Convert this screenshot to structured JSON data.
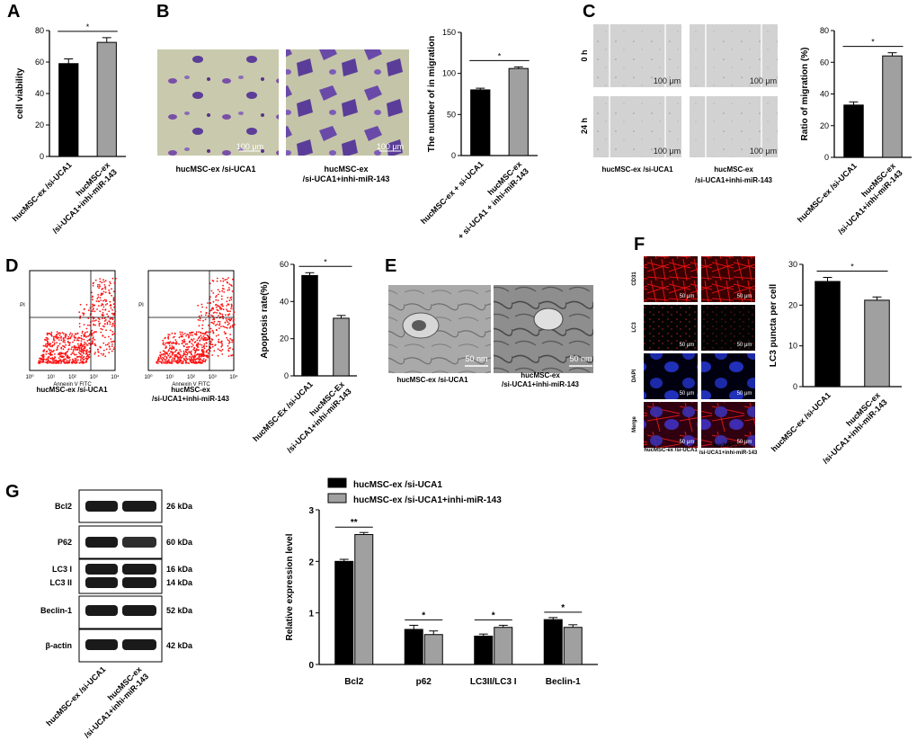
{
  "panels": {
    "A": {
      "letter": "A",
      "chart_data": {
        "type": "bar",
        "categories": [
          "hucMSC-ex /si-UCA1",
          "hucMSC-ex\n/si-UCA1+inhi-miR-143"
        ],
        "values": [
          59,
          72.5
        ],
        "errors": [
          3,
          3
        ],
        "colors": [
          "#000000",
          "#a0a0a0"
        ],
        "ylabel": "cell viability",
        "ylim": [
          0,
          80
        ],
        "yticks": [
          0,
          20,
          40,
          60,
          80
        ],
        "significance": "*"
      }
    },
    "B": {
      "letter": "B",
      "image_labels": [
        "hucMSC-ex /si-UCA1",
        "hucMSC-ex\n/si-UCA1+inhi-miR-143"
      ],
      "scale_bar": "100 μm",
      "chart_data": {
        "type": "bar",
        "categories": [
          "hucMSC-ex + si-UCA1",
          "hucMSC-ex\n+ si-UCA1 + inhi-miR-143"
        ],
        "values": [
          80,
          106
        ],
        "errors": [
          2,
          2
        ],
        "colors": [
          "#000000",
          "#a0a0a0"
        ],
        "ylabel": "The number of in migration",
        "ylim": [
          0,
          150
        ],
        "yticks": [
          0,
          50,
          100,
          150
        ],
        "significance": "*"
      }
    },
    "C": {
      "letter": "C",
      "row_labels": [
        "0 h",
        "24 h"
      ],
      "image_labels": [
        "hucMSC-ex /si-UCA1",
        "hucMSC-ex\n/si-UCA1+inhi-miR-143"
      ],
      "scale_bar": "100 μm",
      "chart_data": {
        "type": "bar",
        "categories": [
          "hucMSC-ex /si-UCA1",
          "hucMSC-ex\n/si-UCA1+inhi-miR-143"
        ],
        "values": [
          33,
          64
        ],
        "errors": [
          2,
          2
        ],
        "colors": [
          "#000000",
          "#a0a0a0"
        ],
        "ylabel": "Ratio of migration (%)",
        "ylim": [
          0,
          80
        ],
        "yticks": [
          0,
          20,
          40,
          60,
          80
        ],
        "significance": "*"
      }
    },
    "D": {
      "letter": "D",
      "flow_labels": [
        "hucMSC-ex /si-UCA1",
        "hucMSC-ex\n/si-UCA1+inhi-miR-143"
      ],
      "flow_xlabel": "Annexin V FITC",
      "flow_ylabel": "PI",
      "chart_data": {
        "type": "bar",
        "categories": [
          "hucMSC-Ex /si-UCA1",
          "hucMSC-Ex\n/si-UCA1+inhi-miR-143"
        ],
        "values": [
          54,
          31
        ],
        "errors": [
          1.5,
          1.5
        ],
        "colors": [
          "#000000",
          "#a0a0a0"
        ],
        "ylabel": "Apoptosis rate(%)",
        "ylim": [
          0,
          60
        ],
        "yticks": [
          0,
          20,
          40,
          60
        ],
        "significance": "*"
      }
    },
    "E": {
      "letter": "E",
      "image_labels": [
        "hucMSC-ex /si-UCA1",
        "hucMSC-ex\n/si-UCA1+inhi-miR-143"
      ],
      "scale_bar": "50 nm"
    },
    "F": {
      "letter": "F",
      "row_labels": [
        "CD31",
        "LC3",
        "DAPI",
        "Merge"
      ],
      "image_labels": [
        "hucMSC-ex /si-UCA1",
        "hucMSC-ex\n/si-UCA1+inhi-miR-143"
      ],
      "scale_bar": "50 μm",
      "chart_data": {
        "type": "bar",
        "categories": [
          "hucMSC-ex /si-UCA1",
          "hucMSC-ex\n/si-UCA1+inhi-miR-143"
        ],
        "values": [
          25.8,
          21.2
        ],
        "errors": [
          1,
          0.8
        ],
        "colors": [
          "#000000",
          "#a0a0a0"
        ],
        "ylabel": "LC3 puncta per cell",
        "ylim": [
          0,
          30
        ],
        "yticks": [
          0,
          10,
          20,
          30
        ],
        "significance": "*"
      }
    },
    "G": {
      "letter": "G",
      "blot_rows": [
        {
          "name": "Bcl2",
          "kda": "26 kDa"
        },
        {
          "name": "P62",
          "kda": "60 kDa"
        },
        {
          "name": "LC3 I",
          "kda": "16 kDa"
        },
        {
          "name": "LC3 II",
          "kda": "14 kDa"
        },
        {
          "name": "Beclin-1",
          "kda": "52 kDa"
        },
        {
          "name": "β-actin",
          "kda": "42 kDa"
        }
      ],
      "blot_labels": [
        "hucMSC-ex /si-UCA1",
        "hucMSC-ex\n/si-UCA1+inhi-miR-143"
      ],
      "chart_data": {
        "type": "bar",
        "categories": [
          "Bcl2",
          "p62",
          "LC3II/LC3 I",
          "Beclin-1"
        ],
        "series": [
          {
            "name": "hucMSC-ex /si-UCA1",
            "values": [
              2.0,
              0.68,
              0.55,
              0.87
            ],
            "errors": [
              0.04,
              0.08,
              0.04,
              0.04
            ],
            "color": "#000000"
          },
          {
            "name": "hucMSC-ex /si-UCA1+inhi-miR-143",
            "values": [
              2.52,
              0.58,
              0.72,
              0.72
            ],
            "errors": [
              0.04,
              0.07,
              0.04,
              0.05
            ],
            "color": "#a0a0a0"
          }
        ],
        "significance": [
          "**",
          "*",
          "*",
          "*"
        ],
        "ylabel": "Relative expression level",
        "ylim": [
          0,
          3
        ],
        "yticks": [
          0,
          1,
          2,
          3
        ]
      }
    }
  }
}
